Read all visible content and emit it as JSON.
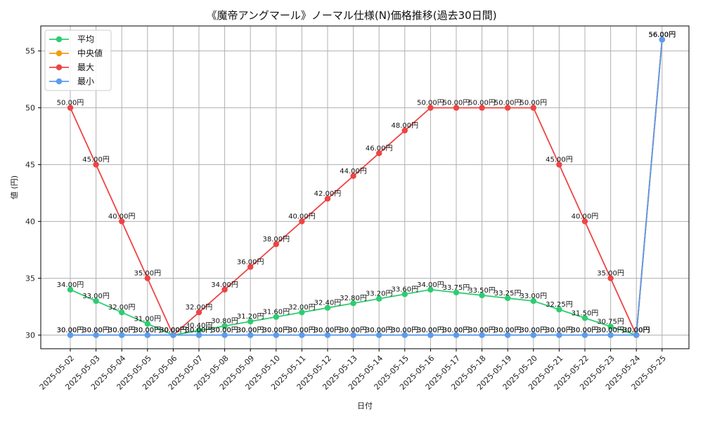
{
  "chart_data": {
    "type": "line",
    "title": "《魔帝アングマール》ノーマル仕様(N)価格推移(過去30日間)",
    "xlabel": "日付",
    "ylabel": "値 (円)",
    "ylim": [
      28.8,
      57.2
    ],
    "yticks": [
      30,
      35,
      40,
      45,
      50,
      55
    ],
    "grid": true,
    "legend_position": "top-left",
    "label_suffix": "円",
    "categories": [
      "2025-05-02",
      "2025-05-03",
      "2025-05-04",
      "2025-05-05",
      "2025-05-06",
      "2025-05-07",
      "2025-05-08",
      "2025-05-09",
      "2025-05-10",
      "2025-05-11",
      "2025-05-12",
      "2025-05-13",
      "2025-05-14",
      "2025-05-15",
      "2025-05-16",
      "2025-05-17",
      "2025-05-18",
      "2025-05-19",
      "2025-05-20",
      "2025-05-21",
      "2025-05-22",
      "2025-05-23",
      "2025-05-24",
      "2025-05-25"
    ],
    "series": [
      {
        "name": "平均",
        "color": "#2ecc71",
        "values": [
          34.0,
          33.0,
          32.0,
          31.0,
          30.0,
          30.4,
          30.8,
          31.2,
          31.6,
          32.0,
          32.4,
          32.8,
          33.2,
          33.6,
          34.0,
          33.75,
          33.5,
          33.25,
          33.0,
          32.25,
          31.5,
          30.75,
          30.0,
          56.0
        ]
      },
      {
        "name": "中央値",
        "color": "#f39c12",
        "values": [
          30.0,
          30.0,
          30.0,
          30.0,
          30.0,
          30.0,
          30.0,
          30.0,
          30.0,
          30.0,
          30.0,
          30.0,
          30.0,
          30.0,
          30.0,
          30.0,
          30.0,
          30.0,
          30.0,
          30.0,
          30.0,
          30.0,
          30.0,
          56.0
        ]
      },
      {
        "name": "最大",
        "color": "#ef4444",
        "values": [
          50.0,
          45.0,
          40.0,
          35.0,
          30.0,
          32.0,
          34.0,
          36.0,
          38.0,
          40.0,
          42.0,
          44.0,
          46.0,
          48.0,
          50.0,
          50.0,
          50.0,
          50.0,
          50.0,
          45.0,
          40.0,
          35.0,
          30.0,
          56.0
        ]
      },
      {
        "name": "最小",
        "color": "#5b9cf0",
        "values": [
          30.0,
          30.0,
          30.0,
          30.0,
          30.0,
          30.0,
          30.0,
          30.0,
          30.0,
          30.0,
          30.0,
          30.0,
          30.0,
          30.0,
          30.0,
          30.0,
          30.0,
          30.0,
          30.0,
          30.0,
          30.0,
          30.0,
          30.0,
          56.0
        ]
      }
    ]
  }
}
